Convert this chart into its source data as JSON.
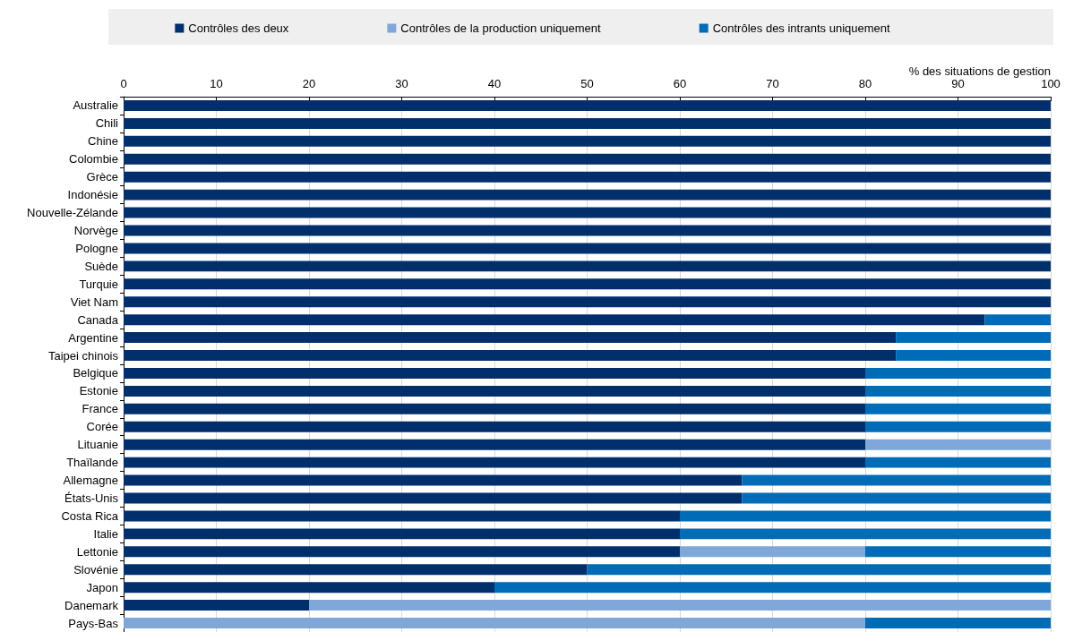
{
  "chart_data": {
    "type": "bar",
    "orientation": "horizontal",
    "stacked": true,
    "xlabel": "% des situations de gestion",
    "categories": [
      "Australie",
      "Chili",
      "Chine",
      "Colombie",
      "Grèce",
      "Indonésie",
      "Nouvelle-Zélande",
      "Norvège",
      "Pologne",
      "Suède",
      "Turquie",
      "Viet Nam",
      "Canada",
      "Argentine",
      "Taipei chinois",
      "Belgique",
      "Estonie",
      "France",
      "Corée",
      "Lituanie",
      "Thaïlande",
      "Allemagne",
      "États-Unis",
      "Costa Rica",
      "Italie",
      "Lettonie",
      "Slovénie",
      "Japon",
      "Danemark",
      "Pays-Bas"
    ],
    "series": [
      {
        "name": "Contrôles des deux",
        "color": "#002f6c",
        "values": [
          100,
          100,
          100,
          100,
          100,
          100,
          100,
          100,
          100,
          100,
          100,
          100,
          92.9,
          83.3,
          83.3,
          80,
          80,
          80,
          80,
          80,
          80,
          66.7,
          66.7,
          60,
          60,
          60,
          50,
          40,
          20,
          0
        ]
      },
      {
        "name": "Contrôles de la production uniquement",
        "color": "#7fa8d9",
        "values": [
          0,
          0,
          0,
          0,
          0,
          0,
          0,
          0,
          0,
          0,
          0,
          0,
          0,
          0,
          0,
          0,
          0,
          0,
          0,
          20,
          0,
          0,
          0,
          0,
          0,
          20,
          0,
          0,
          80,
          80
        ]
      },
      {
        "name": "Contrôles des intrants uniquement",
        "color": "#006bb6",
        "values": [
          0,
          0,
          0,
          0,
          0,
          0,
          0,
          0,
          0,
          0,
          0,
          0,
          7.1,
          16.7,
          16.7,
          20,
          20,
          20,
          20,
          0,
          20,
          33.3,
          33.3,
          40,
          40,
          20,
          50,
          60,
          0,
          20
        ]
      }
    ],
    "xlim": [
      0,
      100
    ],
    "xticks": [
      0,
      10,
      20,
      30,
      40,
      50,
      60,
      70,
      80,
      90,
      100
    ],
    "grid": "x",
    "legend": "top"
  }
}
